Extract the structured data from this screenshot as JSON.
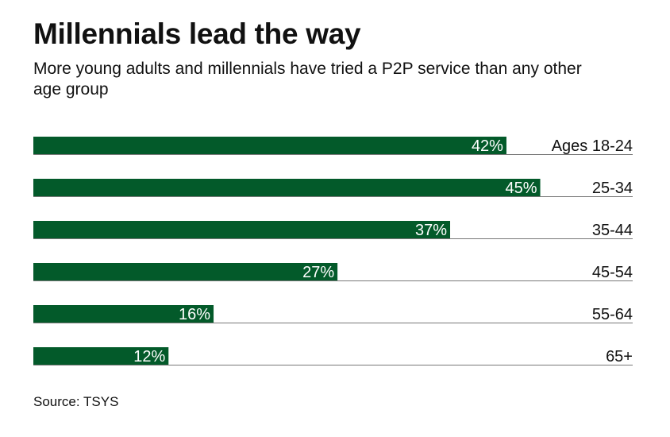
{
  "title": "Millennials lead the way",
  "subtitle": "More young adults and millennials have tried a P2P service than any other age group",
  "source": "Source: TSYS",
  "chart_data": {
    "type": "bar",
    "orientation": "horizontal",
    "title": "Millennials lead the way",
    "categories": [
      "Ages 18-24",
      "25-34",
      "35-44",
      "45-54",
      "55-64",
      "65+"
    ],
    "values": [
      42,
      45,
      37,
      27,
      16,
      12
    ],
    "value_labels": [
      "42%",
      "45%",
      "37%",
      "27%",
      "16%",
      "12%"
    ],
    "unit": "%",
    "xlim": [
      0,
      55
    ],
    "bar_color": "#035a2a",
    "grid": false,
    "legend": "none"
  }
}
